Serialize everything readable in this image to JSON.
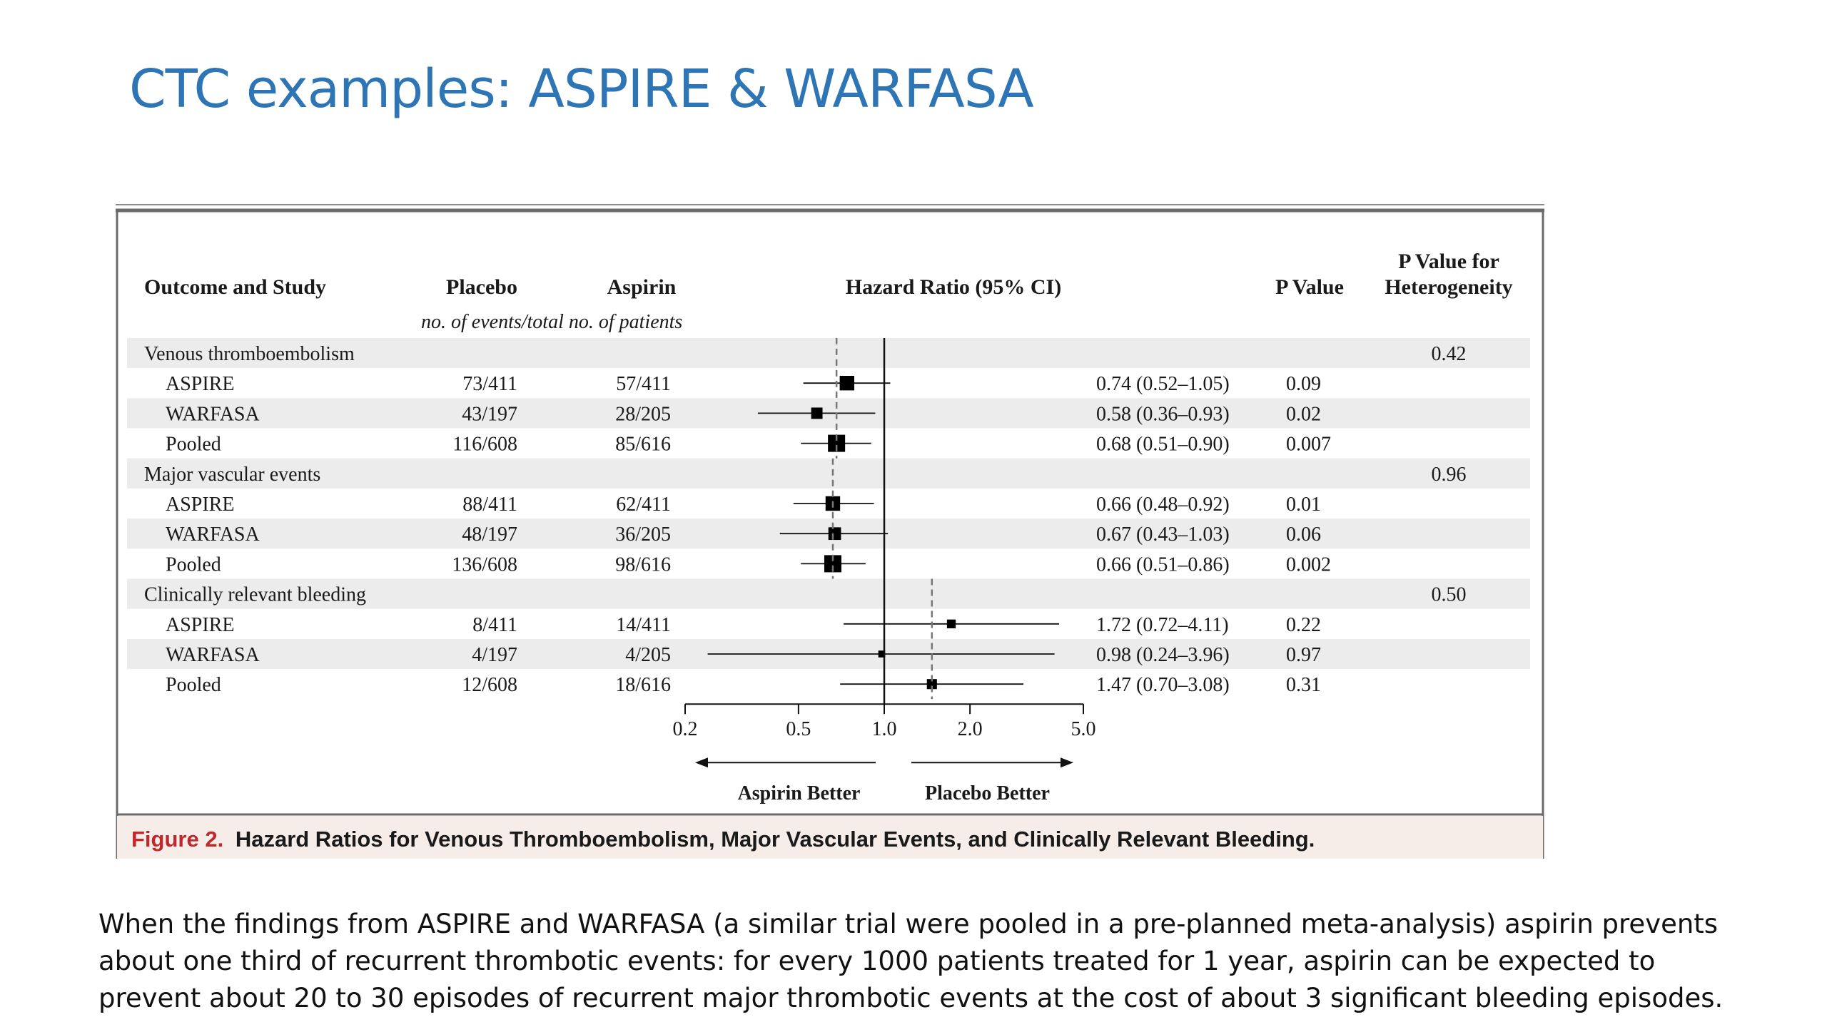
{
  "slide": {
    "title": "CTC examples: ASPIRE & WARFASA",
    "caption": "When the findings from ASPIRE and WARFASA (a similar trial were pooled in a pre-planned meta-analysis) aspirin prevents about one third of recurrent thrombotic events: for every 1000 patients treated for 1 year, aspirin can be expected to prevent about 20 to 30 episodes of recurrent major thrombotic events at the cost of about 3 significant bleeding episodes."
  },
  "figure": {
    "headers": {
      "outcome": "Outcome and Study",
      "placebo": "Placebo",
      "aspirin": "Aspirin",
      "hazard": "Hazard Ratio (95% CI)",
      "pvalue": "P Value",
      "phet_line1": "P Value for",
      "phet_line2": "Heterogeneity",
      "subheader": "no. of events/total no. of patients"
    },
    "caption_label": "Figure 2.",
    "caption_text": "Hazard Ratios for Venous Thromboembolism, Major Vascular Events, and Clinically Relevant Bleeding.",
    "accent_color": "#c0282d"
  },
  "chart_data": {
    "type": "forest",
    "xscale": "log",
    "xlim": [
      0.2,
      5.0
    ],
    "reference_line": 1.0,
    "xticks": [
      0.2,
      0.5,
      1.0,
      2.0,
      5.0
    ],
    "xtick_labels": [
      "0.2",
      "0.5",
      "1.0",
      "2.0",
      "5.0"
    ],
    "direction_labels": {
      "left": "Aspirin Better",
      "right": "Placebo Better"
    },
    "groups": [
      {
        "label": "Venous thromboembolism",
        "p_heterogeneity": "0.42",
        "pooled_hr": 0.68,
        "studies": [
          {
            "label": "ASPIRE",
            "placebo": "73/411",
            "aspirin": "57/411",
            "hr": 0.74,
            "lo": 0.52,
            "hi": 1.05,
            "hr_text": "0.74 (0.52–1.05)",
            "p": "0.09",
            "size": 0.8
          },
          {
            "label": "WARFASA",
            "placebo": "43/197",
            "aspirin": "28/205",
            "hr": 0.58,
            "lo": 0.36,
            "hi": 0.93,
            "hr_text": "0.58 (0.36–0.93)",
            "p": "0.02",
            "size": 0.55
          },
          {
            "label": "Pooled",
            "placebo": "116/608",
            "aspirin": "85/616",
            "hr": 0.68,
            "lo": 0.51,
            "hi": 0.9,
            "hr_text": "0.68 (0.51–0.90)",
            "p": "0.007",
            "size": 1.0
          }
        ]
      },
      {
        "label": "Major vascular events",
        "p_heterogeneity": "0.96",
        "pooled_hr": 0.66,
        "studies": [
          {
            "label": "ASPIRE",
            "placebo": "88/411",
            "aspirin": "62/411",
            "hr": 0.66,
            "lo": 0.48,
            "hi": 0.92,
            "hr_text": "0.66 (0.48–0.92)",
            "p": "0.01",
            "size": 0.8
          },
          {
            "label": "WARFASA",
            "placebo": "48/197",
            "aspirin": "36/205",
            "hr": 0.67,
            "lo": 0.43,
            "hi": 1.03,
            "hr_text": "0.67 (0.43–1.03)",
            "p": "0.06",
            "size": 0.65
          },
          {
            "label": "Pooled",
            "placebo": "136/608",
            "aspirin": "98/616",
            "hr": 0.66,
            "lo": 0.51,
            "hi": 0.86,
            "hr_text": "0.66 (0.51–0.86)",
            "p": "0.002",
            "size": 1.0
          }
        ]
      },
      {
        "label": "Clinically relevant bleeding",
        "p_heterogeneity": "0.50",
        "pooled_hr": 1.47,
        "studies": [
          {
            "label": "ASPIRE",
            "placebo": "8/411",
            "aspirin": "14/411",
            "hr": 1.72,
            "lo": 0.72,
            "hi": 4.11,
            "hr_text": "1.72 (0.72–4.11)",
            "p": "0.22",
            "size": 0.35
          },
          {
            "label": "WARFASA",
            "placebo": "4/197",
            "aspirin": "4/205",
            "hr": 0.98,
            "lo": 0.24,
            "hi": 3.96,
            "hr_text": "0.98 (0.24–3.96)",
            "p": "0.97",
            "size": 0.2
          },
          {
            "label": "Pooled",
            "placebo": "12/608",
            "aspirin": "18/616",
            "hr": 1.47,
            "lo": 0.7,
            "hi": 3.08,
            "hr_text": "1.47 (0.70–3.08)",
            "p": "0.31",
            "size": 0.45
          }
        ]
      }
    ]
  }
}
